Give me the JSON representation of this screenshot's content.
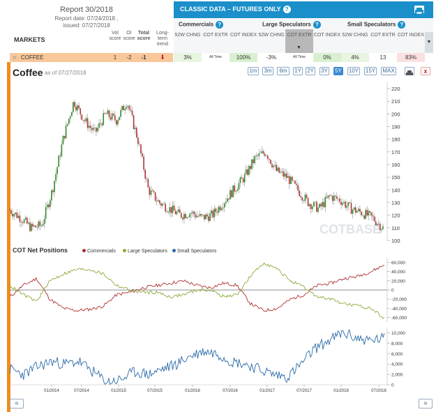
{
  "report": {
    "title": "Report 30/2018",
    "date": "Report date: 07/24/2018 ,",
    "issued": "issued: 07/27/2018"
  },
  "markets_label": "MARKETS",
  "score_headers": [
    "Vol score",
    "OI score",
    "Total score",
    "Long-term trend"
  ],
  "classic": {
    "title": "CLASSIC DATA – FUTURES ONLY",
    "groups": [
      "Commercials",
      "Large Speculators",
      "Small Speculators"
    ],
    "sub_headers": [
      "52W CHNG",
      "COT EXTR",
      "COT INDEX"
    ]
  },
  "row": {
    "name": "COFFEE",
    "vol": "1",
    "oi": "-2",
    "total": "-1",
    "comm_chng": "3%",
    "comm_extr": "All Time",
    "comm_index": "100%",
    "large_chng": "-3%",
    "large_extr": "All Time",
    "large_index": "0%",
    "small_chng": "4%",
    "small_extr": "13",
    "small_index": "83%"
  },
  "chart": {
    "title": "Coffee",
    "asof": "as of 07/27/2018",
    "ranges": [
      "1m",
      "3m",
      "6m",
      "1Y",
      "2Y",
      "3Y",
      "5Y",
      "10Y",
      "15Y",
      "MAX"
    ],
    "active_range": "5Y",
    "watermark": "COTBASE",
    "cot_title": "COT Net Positions",
    "legend": [
      "Commercials",
      "Large Speculators",
      "Small Speculators"
    ],
    "nav_prev": "«",
    "nav_next": "»"
  },
  "colors": {
    "commercials": "#b03030",
    "large": "#8aaa3a",
    "small": "#2a6aa8",
    "accent": "#1a8fc9",
    "orange": "#f28c1e"
  },
  "chart_data": [
    {
      "type": "candlestick",
      "title": "Coffee",
      "ylim": [
        100,
        225
      ],
      "yticks": [
        100,
        110,
        120,
        130,
        140,
        150,
        160,
        170,
        180,
        190,
        200,
        210,
        220
      ],
      "x": [
        "2013-08",
        "2013-10",
        "2013-12",
        "2014-01",
        "2014-02",
        "2014-03",
        "2014-04",
        "2014-05",
        "2014-07",
        "2014-09",
        "2014-10",
        "2014-12",
        "2015-01",
        "2015-03",
        "2015-05",
        "2015-07",
        "2015-09",
        "2015-11",
        "2016-01",
        "2016-03",
        "2016-05",
        "2016-07",
        "2016-09",
        "2016-10",
        "2016-11",
        "2016-12",
        "2017-01",
        "2017-03",
        "2017-05",
        "2017-07",
        "2017-09",
        "2017-11",
        "2018-01",
        "2018-03",
        "2018-05",
        "2018-07"
      ],
      "values": [
        124,
        118,
        110,
        112,
        140,
        180,
        210,
        195,
        185,
        200,
        195,
        210,
        180,
        140,
        130,
        125,
        120,
        122,
        118,
        120,
        130,
        140,
        150,
        165,
        170,
        155,
        150,
        140,
        130,
        125,
        135,
        132,
        125,
        122,
        118,
        110
      ]
    },
    {
      "type": "line",
      "title": "COT Net Positions",
      "yticks_right": [
        60000,
        40000,
        20000,
        0,
        -20000,
        -40000,
        -60000
      ],
      "series": [
        {
          "name": "Commercials",
          "values": [
            -15000,
            10000,
            25000,
            -20000,
            -40000,
            -45000,
            -42000,
            -35000,
            -10000,
            -5000,
            5000,
            10000,
            15000,
            20000,
            10000,
            5000,
            15000,
            10000,
            -30000,
            -45000,
            -40000,
            -20000,
            -10000,
            10000,
            15000,
            25000,
            30000,
            40000,
            55000
          ]
        },
        {
          "name": "Large Speculators",
          "values": [
            10000,
            -10000,
            -25000,
            20000,
            35000,
            45000,
            45000,
            35000,
            10000,
            0,
            -5000,
            -5000,
            -15000,
            -10000,
            0,
            0,
            -15000,
            -10000,
            30000,
            60000,
            45000,
            20000,
            5000,
            -15000,
            -20000,
            -30000,
            -35000,
            -40000,
            -60000
          ]
        }
      ]
    },
    {
      "type": "line",
      "title": "Small Speculators",
      "yticks_right": [
        0,
        2000,
        4000,
        6000,
        8000,
        10000
      ],
      "series": [
        {
          "name": "Small Speculators",
          "values": [
            3000,
            2000,
            3500,
            4500,
            4000,
            4500,
            2500,
            500,
            1000,
            2500,
            2000,
            3000,
            4000,
            5500,
            6500,
            6000,
            4500,
            4000,
            3000,
            2000,
            1500,
            4000,
            7000,
            8500,
            10000,
            9000,
            8500,
            9000
          ]
        }
      ],
      "xticks": [
        "01/2014",
        "07/2014",
        "01/2015",
        "07/2015",
        "01/2016",
        "07/2016",
        "01/2017",
        "07/2017",
        "01/2018",
        "07/2018"
      ]
    }
  ]
}
